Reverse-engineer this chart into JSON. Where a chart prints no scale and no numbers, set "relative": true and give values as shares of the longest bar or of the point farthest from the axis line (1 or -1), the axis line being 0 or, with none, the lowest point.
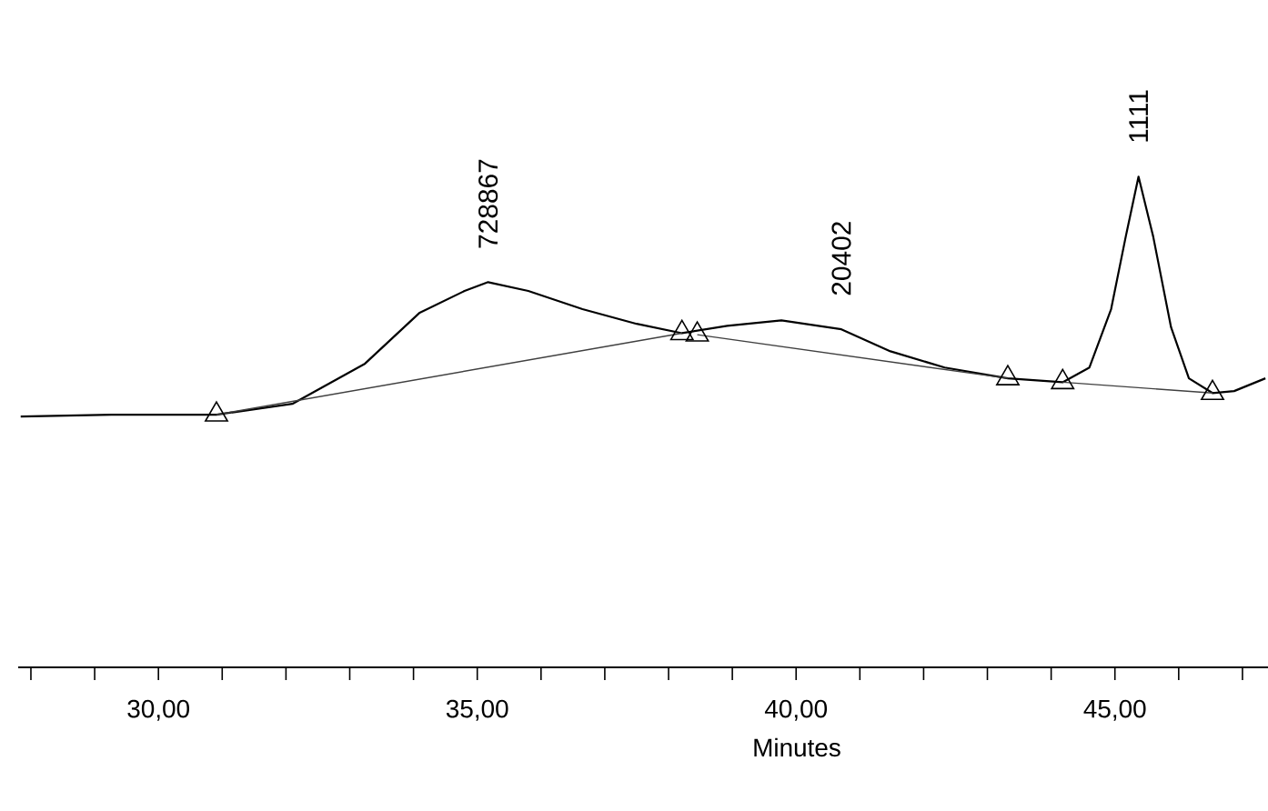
{
  "chart_data": {
    "type": "line",
    "relative": true,
    "xlabel": "Minutes",
    "xlim": [
      27.8,
      47.4
    ],
    "xticks": [
      {
        "value": 28,
        "label": null
      },
      {
        "value": 29,
        "label": null
      },
      {
        "value": 30,
        "label": "30,00"
      },
      {
        "value": 31,
        "label": null
      },
      {
        "value": 32,
        "label": null
      },
      {
        "value": 33,
        "label": null
      },
      {
        "value": 34,
        "label": null
      },
      {
        "value": 35,
        "label": "35,00"
      },
      {
        "value": 36,
        "label": null
      },
      {
        "value": 37,
        "label": null
      },
      {
        "value": 38,
        "label": null
      },
      {
        "value": 39,
        "label": null
      },
      {
        "value": 40,
        "label": "40,00"
      },
      {
        "value": 41,
        "label": null
      },
      {
        "value": 42,
        "label": null
      },
      {
        "value": 43,
        "label": null
      },
      {
        "value": 44,
        "label": null
      },
      {
        "value": 45,
        "label": "45,00"
      },
      {
        "value": 46,
        "label": null
      },
      {
        "value": 47,
        "label": null
      }
    ],
    "series": [
      {
        "color": "#000000",
        "x": [
          27.84,
          29.26,
          30.91,
          32.1,
          33.24,
          34.09,
          34.8,
          35.17,
          35.8,
          36.65,
          37.5,
          38.21,
          38.92,
          39.77,
          40.71,
          41.48,
          42.33,
          43.32,
          44.18,
          44.6,
          44.94,
          45.17,
          45.37,
          45.6,
          45.88,
          46.16,
          46.53,
          46.87,
          47.36
        ],
        "values": [
          0.511,
          0.515,
          0.515,
          0.537,
          0.619,
          0.722,
          0.767,
          0.785,
          0.767,
          0.73,
          0.7,
          0.681,
          0.696,
          0.707,
          0.689,
          0.644,
          0.611,
          0.589,
          0.581,
          0.611,
          0.73,
          0.878,
          1.0,
          0.878,
          0.693,
          0.589,
          0.559,
          0.563,
          0.589
        ]
      },
      {
        "type": "line",
        "color": "#404040",
        "x": [
          30.91,
          38.21
        ],
        "values": [
          0.515,
          0.681
        ]
      },
      {
        "type": "line",
        "color": "#404040",
        "x": [
          38.45,
          43.32
        ],
        "values": [
          0.678,
          0.589
        ]
      },
      {
        "type": "line",
        "color": "#404040",
        "x": [
          44.18,
          46.53
        ],
        "values": [
          0.581,
          0.559
        ]
      },
      {
        "type": "scatter",
        "marker": "triangle",
        "color": "#000000",
        "x": [
          30.91,
          38.21,
          38.45,
          43.32,
          44.18,
          46.53
        ],
        "values": [
          0.515,
          0.681,
          0.678,
          0.589,
          0.581,
          0.559
        ]
      }
    ],
    "annotations": [
      {
        "text": "728867",
        "x": 35.17,
        "y": 0.785
      },
      {
        "text": "20402",
        "x": 40.71,
        "y": 0.689
      },
      {
        "text": "1111",
        "x": 45.37,
        "y": 1.0
      }
    ]
  }
}
